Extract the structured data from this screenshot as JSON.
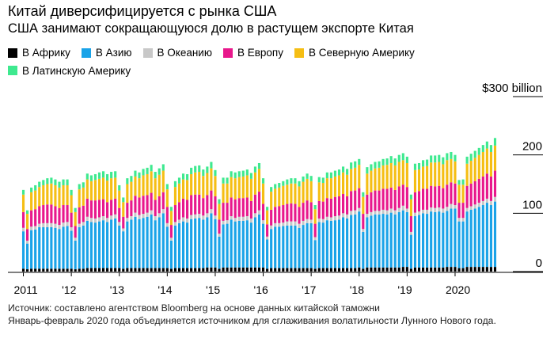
{
  "header": {
    "title": "Китай диверсифицируется с рынка США",
    "subtitle": "США занимают сокращающуюся долю в растущем экспорте Китая"
  },
  "legend": [
    {
      "label": "В Африку",
      "color": "#000000"
    },
    {
      "label": "В Азию",
      "color": "#1aa3e8"
    },
    {
      "label": "В Океанию",
      "color": "#c8c8c8"
    },
    {
      "label": "В Европу",
      "color": "#e8188c"
    },
    {
      "label": "В Северную Америку",
      "color": "#f5be14"
    },
    {
      "label": "В Латинскую Америку",
      "color": "#3ee98f"
    }
  ],
  "footer": {
    "source": "Источник: составлено агентством Bloomberg на основе данных китайской таможни",
    "note": "Январь-февраль 2020 года объединяется источником для сглаживания волатильности Лунного Нового года."
  },
  "chart_data": {
    "type": "bar",
    "stacked": true,
    "unit": "billion",
    "ylim": [
      0,
      300
    ],
    "y_ticks": [
      {
        "value": 0,
        "label": "0"
      },
      {
        "value": 100,
        "label": "100"
      },
      {
        "value": 200,
        "label": "200"
      },
      {
        "value": 300,
        "label": "$300 billion"
      }
    ],
    "x_ticks": [
      "2011",
      "'12",
      "'13",
      "'14",
      "'15",
      "'16",
      "'17",
      "'18",
      "'19",
      "2020"
    ],
    "grid": true,
    "legend_position": "top",
    "months": [
      "2011-01",
      "2011-02",
      "2011-03",
      "2011-04",
      "2011-05",
      "2011-06",
      "2011-07",
      "2011-08",
      "2011-09",
      "2011-10",
      "2011-11",
      "2011-12",
      "2012-01",
      "2012-02",
      "2012-03",
      "2012-04",
      "2012-05",
      "2012-06",
      "2012-07",
      "2012-08",
      "2012-09",
      "2012-10",
      "2012-11",
      "2012-12",
      "2013-01",
      "2013-02",
      "2013-03",
      "2013-04",
      "2013-05",
      "2013-06",
      "2013-07",
      "2013-08",
      "2013-09",
      "2013-10",
      "2013-11",
      "2013-12",
      "2014-01",
      "2014-02",
      "2014-03",
      "2014-04",
      "2014-05",
      "2014-06",
      "2014-07",
      "2014-08",
      "2014-09",
      "2014-10",
      "2014-11",
      "2014-12",
      "2015-01",
      "2015-02",
      "2015-03",
      "2015-04",
      "2015-05",
      "2015-06",
      "2015-07",
      "2015-08",
      "2015-09",
      "2015-10",
      "2015-11",
      "2015-12",
      "2016-01",
      "2016-02",
      "2016-03",
      "2016-04",
      "2016-05",
      "2016-06",
      "2016-07",
      "2016-08",
      "2016-09",
      "2016-10",
      "2016-11",
      "2016-12",
      "2017-01",
      "2017-02",
      "2017-03",
      "2017-04",
      "2017-05",
      "2017-06",
      "2017-07",
      "2017-08",
      "2017-09",
      "2017-10",
      "2017-11",
      "2017-12",
      "2018-01",
      "2018-02",
      "2018-03",
      "2018-04",
      "2018-05",
      "2018-06",
      "2018-07",
      "2018-08",
      "2018-09",
      "2018-10",
      "2018-11",
      "2018-12",
      "2019-01",
      "2019-02",
      "2019-03",
      "2019-04",
      "2019-05",
      "2019-06",
      "2019-07",
      "2019-08",
      "2019-09",
      "2019-10",
      "2019-11",
      "2019-12",
      "2020-01",
      "2020-02",
      "2020-03",
      "2020-04",
      "2020-05",
      "2020-06",
      "2020-07",
      "2020-08",
      "2020-09",
      "2020-10",
      "2020-11"
    ],
    "series": [
      {
        "name": "В Африку",
        "color": "#000000",
        "values": [
          5,
          4,
          5,
          5,
          5,
          5,
          5,
          5,
          5,
          5,
          5,
          5,
          5,
          4,
          5,
          5,
          6,
          6,
          6,
          6,
          6,
          6,
          6,
          6,
          6,
          5,
          6,
          6,
          6,
          6,
          6,
          6,
          6,
          6,
          6,
          6,
          6,
          5,
          6,
          6,
          6,
          6,
          6,
          6,
          6,
          6,
          7,
          7,
          7,
          5,
          7,
          7,
          7,
          7,
          7,
          7,
          7,
          7,
          7,
          7,
          7,
          5,
          6,
          6,
          6,
          6,
          6,
          6,
          6,
          6,
          6,
          6,
          6,
          5,
          6,
          6,
          6,
          6,
          6,
          6,
          6,
          6,
          6,
          6,
          7,
          5,
          7,
          7,
          7,
          7,
          7,
          7,
          7,
          7,
          7,
          8,
          8,
          5,
          7,
          7,
          7,
          7,
          7,
          7,
          7,
          7,
          8,
          8,
          8,
          6,
          6,
          8,
          8,
          8,
          8,
          8,
          8,
          8,
          8
        ]
      },
      {
        "name": "В Азию",
        "color": "#1aa3e8",
        "values": [
          64,
          44,
          66,
          67,
          71,
          71,
          71,
          71,
          70,
          68,
          72,
          73,
          65,
          49,
          71,
          74,
          81,
          79,
          78,
          80,
          82,
          79,
          83,
          85,
          73,
          64,
          80,
          83,
          88,
          84,
          86,
          88,
          92,
          82,
          87,
          94,
          71,
          48,
          73,
          77,
          80,
          78,
          84,
          85,
          86,
          83,
          86,
          93,
          83,
          55,
          74,
          75,
          82,
          79,
          80,
          80,
          81,
          77,
          86,
          91,
          75,
          50,
          67,
          71,
          71,
          72,
          73,
          73,
          73,
          69,
          74,
          77,
          77,
          49,
          79,
          78,
          82,
          81,
          82,
          83,
          87,
          85,
          91,
          92,
          96,
          63,
          86,
          89,
          91,
          91,
          92,
          91,
          94,
          91,
          95,
          97,
          94,
          58,
          88,
          90,
          93,
          92,
          96,
          95,
          96,
          94,
          96,
          100,
          100,
          80,
          80,
          95,
          98,
          100,
          103,
          106,
          110,
          106,
          112
        ]
      },
      {
        "name": "В Океанию",
        "color": "#c8c8c8",
        "values": [
          6,
          5,
          6,
          6,
          6,
          7,
          7,
          7,
          7,
          7,
          7,
          7,
          6,
          5,
          6,
          6,
          7,
          7,
          7,
          7,
          7,
          7,
          7,
          7,
          6,
          5,
          6,
          6,
          7,
          7,
          7,
          7,
          7,
          7,
          7,
          7,
          6,
          5,
          6,
          6,
          7,
          7,
          7,
          7,
          7,
          7,
          7,
          7,
          6,
          5,
          6,
          6,
          6,
          6,
          7,
          7,
          7,
          7,
          7,
          7,
          6,
          5,
          6,
          6,
          6,
          6,
          7,
          7,
          7,
          7,
          7,
          7,
          6,
          5,
          6,
          6,
          6,
          6,
          7,
          7,
          7,
          7,
          7,
          7,
          6,
          5,
          6,
          6,
          6,
          6,
          7,
          7,
          7,
          7,
          7,
          8,
          6,
          5,
          6,
          6,
          6,
          7,
          7,
          7,
          7,
          7,
          7,
          8,
          6,
          6,
          6,
          6,
          6,
          7,
          7,
          7,
          7,
          7,
          8
        ]
      },
      {
        "name": "В Европу",
        "color": "#e8188c",
        "values": [
          27,
          20,
          28,
          29,
          30,
          31,
          32,
          32,
          30,
          29,
          30,
          29,
          25,
          20,
          28,
          28,
          31,
          30,
          31,
          30,
          29,
          27,
          27,
          27,
          24,
          20,
          26,
          27,
          29,
          30,
          31,
          30,
          30,
          28,
          29,
          29,
          28,
          22,
          29,
          30,
          32,
          32,
          34,
          34,
          33,
          30,
          31,
          32,
          33,
          24,
          31,
          30,
          32,
          32,
          32,
          32,
          32,
          30,
          32,
          32,
          28,
          21,
          27,
          28,
          29,
          30,
          30,
          31,
          30,
          29,
          31,
          32,
          30,
          23,
          30,
          30,
          32,
          32,
          33,
          33,
          33,
          31,
          34,
          34,
          34,
          26,
          33,
          34,
          35,
          35,
          36,
          37,
          36,
          35,
          37,
          36,
          37,
          27,
          35,
          35,
          36,
          36,
          37,
          37,
          37,
          35,
          38,
          37,
          37,
          26,
          26,
          38,
          39,
          40,
          41,
          42,
          43,
          42,
          45
        ]
      },
      {
        "name": "В Северную Америку",
        "color": "#f5be14",
        "values": [
          30,
          26,
          31,
          32,
          33,
          34,
          35,
          36,
          36,
          35,
          34,
          34,
          30,
          24,
          31,
          31,
          33,
          33,
          35,
          36,
          37,
          37,
          37,
          36,
          30,
          25,
          32,
          32,
          33,
          33,
          35,
          36,
          37,
          37,
          37,
          37,
          30,
          24,
          31,
          32,
          33,
          34,
          36,
          38,
          39,
          38,
          38,
          38,
          35,
          27,
          33,
          33,
          35,
          36,
          36,
          37,
          38,
          38,
          38,
          39,
          35,
          24,
          31,
          31,
          32,
          33,
          33,
          34,
          35,
          35,
          36,
          37,
          36,
          25,
          32,
          32,
          34,
          35,
          35,
          36,
          37,
          37,
          38,
          39,
          40,
          29,
          36,
          37,
          38,
          39,
          40,
          41,
          42,
          42,
          42,
          42,
          41,
          29,
          38,
          37,
          38,
          39,
          40,
          41,
          41,
          41,
          42,
          40,
          38,
          31,
          31,
          38,
          39,
          40,
          41,
          42,
          43,
          42,
          43
        ]
      },
      {
        "name": "В Латинскую Америку",
        "color": "#3ee98f",
        "values": [
          8,
          6,
          8,
          9,
          9,
          9,
          10,
          10,
          10,
          10,
          10,
          10,
          9,
          7,
          9,
          9,
          10,
          10,
          10,
          11,
          11,
          11,
          11,
          11,
          9,
          8,
          10,
          10,
          10,
          10,
          11,
          11,
          11,
          11,
          11,
          11,
          9,
          7,
          10,
          10,
          10,
          10,
          11,
          11,
          11,
          11,
          11,
          11,
          10,
          8,
          10,
          10,
          10,
          10,
          10,
          10,
          10,
          10,
          10,
          10,
          9,
          6,
          8,
          8,
          8,
          8,
          9,
          9,
          9,
          9,
          9,
          9,
          9,
          7,
          9,
          9,
          10,
          10,
          10,
          10,
          10,
          10,
          11,
          11,
          10,
          8,
          11,
          11,
          11,
          11,
          11,
          11,
          12,
          12,
          12,
          12,
          11,
          8,
          11,
          11,
          11,
          11,
          12,
          12,
          12,
          12,
          12,
          12,
          11,
          8,
          9,
          12,
          12,
          12,
          12,
          12,
          12,
          12,
          13
        ]
      }
    ]
  }
}
